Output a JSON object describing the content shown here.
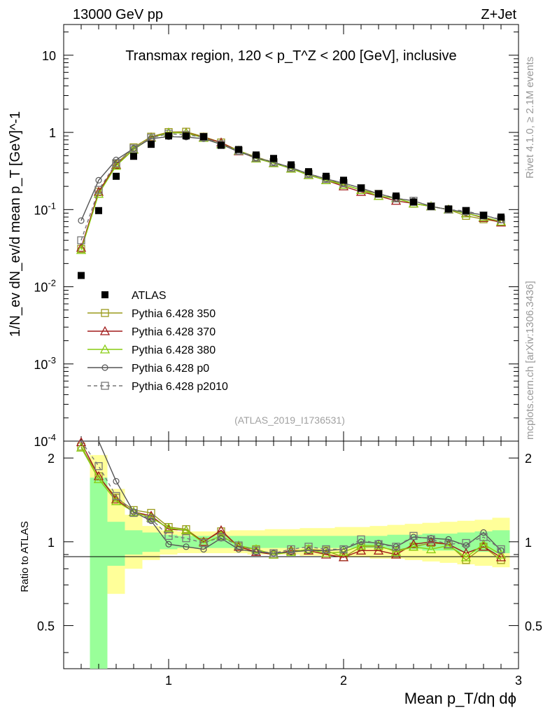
{
  "chart_data": {
    "type": "line",
    "title": "Transmax region, 120 < p_T^Z < 200 [GeV], inclusive",
    "energy_label": "13000 GeV pp",
    "process_label": "Z+Jet",
    "side_label_top": "Rivet 4.1.0, ≥ 2.1M events",
    "side_label_bottom": "mcplots.cern.ch [arXiv:1306.3436]",
    "analysis_id": "(ATLAS_2019_I1736531)",
    "ylabel": "1/N_ev dN_ev/d mean p_T [GeV]^-1",
    "ratio_ylabel": "Ratio to ATLAS",
    "xlabel": "Mean p_T/dη dϕ",
    "xlim": [
      0.4,
      3.0
    ],
    "ylim": [
      0.0001,
      25
    ],
    "ratio_ylim": [
      0.35,
      2.3
    ],
    "x_ticks": [
      "1",
      "2",
      "3"
    ],
    "y_ticks": [
      "10^-4",
      "10^-3",
      "10^-2",
      "10^-1",
      "1",
      "10"
    ],
    "ratio_ticks": [
      "0.5",
      "1",
      "2"
    ],
    "x": [
      0.5,
      0.6,
      0.7,
      0.8,
      0.9,
      1.0,
      1.1,
      1.2,
      1.3,
      1.4,
      1.5,
      1.6,
      1.7,
      1.8,
      1.9,
      2.0,
      2.1,
      2.2,
      2.3,
      2.4,
      2.5,
      2.6,
      2.7,
      2.8,
      2.9
    ],
    "data": {
      "name": "ATLAS",
      "values": [
        0.014,
        0.097,
        0.27,
        0.49,
        0.7,
        0.9,
        0.9,
        0.88,
        0.68,
        0.6,
        0.51,
        0.46,
        0.38,
        0.31,
        0.27,
        0.24,
        0.19,
        0.16,
        0.15,
        0.125,
        0.11,
        0.102,
        0.097,
        0.084,
        0.08
      ],
      "band_inner": [
        [
          0.5,
          0.5
        ],
        [
          0.35,
          1.7
        ],
        [
          0.82,
          1.18
        ],
        [
          0.9,
          1.1
        ],
        [
          0.92,
          1.08
        ],
        [
          0.94,
          1.06
        ],
        [
          0.95,
          1.05
        ],
        [
          0.95,
          1.05
        ],
        [
          0.95,
          1.05
        ],
        [
          0.95,
          1.05
        ],
        [
          0.95,
          1.05
        ],
        [
          0.95,
          1.05
        ],
        [
          0.95,
          1.05
        ],
        [
          0.95,
          1.05
        ],
        [
          0.95,
          1.05
        ],
        [
          0.95,
          1.05
        ],
        [
          0.95,
          1.05
        ],
        [
          0.95,
          1.05
        ],
        [
          0.94,
          1.06
        ],
        [
          0.94,
          1.06
        ],
        [
          0.93,
          1.07
        ],
        [
          0.93,
          1.07
        ],
        [
          0.92,
          1.08
        ],
        [
          0.92,
          1.09
        ],
        [
          0.91,
          1.1
        ]
      ],
      "band_outer": [
        [
          0.5,
          0.5
        ],
        [
          0.35,
          2.05
        ],
        [
          0.65,
          1.55
        ],
        [
          0.8,
          1.25
        ],
        [
          0.86,
          1.14
        ],
        [
          0.9,
          1.1
        ],
        [
          0.91,
          1.09
        ],
        [
          0.91,
          1.09
        ],
        [
          0.91,
          1.09
        ],
        [
          0.91,
          1.1
        ],
        [
          0.9,
          1.1
        ],
        [
          0.9,
          1.11
        ],
        [
          0.9,
          1.11
        ],
        [
          0.89,
          1.12
        ],
        [
          0.89,
          1.12
        ],
        [
          0.88,
          1.13
        ],
        [
          0.88,
          1.13
        ],
        [
          0.87,
          1.14
        ],
        [
          0.87,
          1.15
        ],
        [
          0.86,
          1.16
        ],
        [
          0.85,
          1.17
        ],
        [
          0.84,
          1.18
        ],
        [
          0.83,
          1.19
        ],
        [
          0.82,
          1.2
        ],
        [
          0.81,
          1.22
        ]
      ]
    },
    "series": [
      {
        "name": "Pythia 6.428 350",
        "color": "#9a9a1c",
        "marker": "square-open",
        "dash": "",
        "values": [
          0.031,
          0.17,
          0.39,
          0.64,
          0.88,
          1.01,
          1.02,
          0.88,
          0.74,
          0.58,
          0.48,
          0.41,
          0.35,
          0.29,
          0.25,
          0.21,
          0.18,
          0.16,
          0.14,
          0.12,
          0.11,
          0.1,
          0.083,
          0.075,
          0.069
        ],
        "ratio": [
          2.2,
          1.72,
          1.44,
          1.3,
          1.27,
          1.13,
          1.11,
          1.0,
          1.09,
          0.96,
          0.94,
          0.9,
          0.92,
          0.94,
          0.93,
          0.88,
          0.96,
          0.96,
          0.93,
          0.96,
          0.99,
          0.98,
          0.86,
          0.96,
          0.86
        ]
      },
      {
        "name": "Pythia 6.428 370",
        "color": "#a01a1a",
        "marker": "triangle-open",
        "dash": "",
        "values": [
          0.032,
          0.17,
          0.38,
          0.6,
          0.86,
          0.99,
          0.99,
          0.86,
          0.74,
          0.57,
          0.46,
          0.4,
          0.34,
          0.28,
          0.24,
          0.2,
          0.17,
          0.15,
          0.13,
          0.12,
          0.11,
          0.1,
          0.09,
          0.078,
          0.068
        ],
        "ratio": [
          2.28,
          1.72,
          1.42,
          1.28,
          1.24,
          1.11,
          1.1,
          1.0,
          1.1,
          0.96,
          0.92,
          0.9,
          0.93,
          0.93,
          0.9,
          0.88,
          0.93,
          0.93,
          0.9,
          0.98,
          1.0,
          0.98,
          0.91,
          0.96,
          0.88
        ]
      },
      {
        "name": "Pythia 6.428 380",
        "color": "#88cc10",
        "marker": "triangle-open",
        "dash": "",
        "values": [
          0.03,
          0.16,
          0.37,
          0.6,
          0.85,
          0.99,
          0.98,
          0.85,
          0.7,
          0.58,
          0.46,
          0.4,
          0.34,
          0.28,
          0.24,
          0.21,
          0.18,
          0.15,
          0.14,
          0.12,
          0.11,
          0.1,
          0.089,
          0.08,
          0.07
        ],
        "ratio": [
          2.18,
          1.68,
          1.4,
          1.28,
          1.22,
          1.12,
          1.1,
          0.99,
          1.05,
          0.97,
          0.94,
          0.9,
          0.92,
          0.94,
          0.91,
          0.92,
          0.97,
          0.97,
          0.92,
          0.96,
          0.94,
          0.97,
          0.88,
          0.98,
          0.9
        ]
      },
      {
        "name": "Pythia 6.428 p0",
        "color": "#555555",
        "marker": "circle-open",
        "dash": "",
        "values": [
          0.072,
          0.24,
          0.44,
          0.62,
          0.83,
          0.88,
          0.87,
          0.83,
          0.7,
          0.56,
          0.47,
          0.41,
          0.35,
          0.29,
          0.25,
          0.22,
          0.19,
          0.16,
          0.14,
          0.13,
          0.11,
          0.1,
          0.092,
          0.085,
          0.073
        ],
        "ratio": [
          2.3,
          2.3,
          1.65,
          1.28,
          1.19,
          0.98,
          0.96,
          0.94,
          1.03,
          0.94,
          0.92,
          0.91,
          0.92,
          0.93,
          0.93,
          0.94,
          1.0,
          0.99,
          0.96,
          1.04,
          1.03,
          1.02,
          0.97,
          1.08,
          0.93
        ]
      },
      {
        "name": "Pythia 6.428 p2010",
        "color": "#777777",
        "marker": "square-open",
        "dash": "5,4",
        "values": [
          0.04,
          0.18,
          0.4,
          0.62,
          0.85,
          0.96,
          0.93,
          0.87,
          0.7,
          0.58,
          0.47,
          0.41,
          0.35,
          0.29,
          0.25,
          0.22,
          0.19,
          0.16,
          0.14,
          0.13,
          0.11,
          0.1,
          0.096,
          0.084,
          0.075
        ],
        "ratio": [
          2.6,
          1.87,
          1.46,
          1.27,
          1.21,
          1.05,
          1.03,
          0.99,
          1.04,
          0.97,
          0.93,
          0.91,
          0.94,
          0.96,
          0.94,
          0.94,
          1.02,
          0.98,
          0.96,
          1.05,
          1.02,
          0.98,
          0.99,
          1.04,
          0.94
        ]
      }
    ]
  }
}
